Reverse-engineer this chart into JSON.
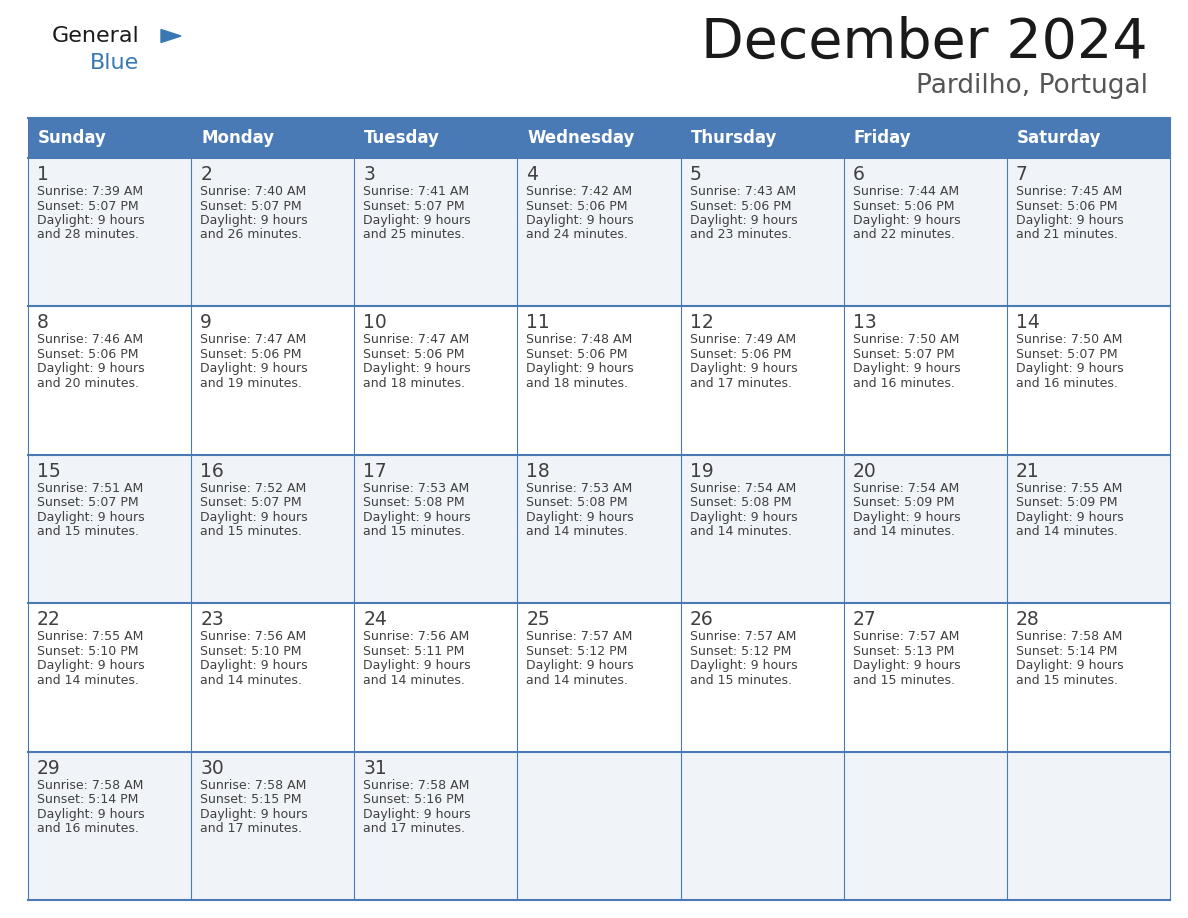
{
  "title": "December 2024",
  "subtitle": "Pardilho, Portugal",
  "days_of_week": [
    "Sunday",
    "Monday",
    "Tuesday",
    "Wednesday",
    "Thursday",
    "Friday",
    "Saturday"
  ],
  "header_bg_color": "#4a7ab5",
  "header_text_color": "#ffffff",
  "row_bg_even": "#f0f4f8",
  "row_bg_odd": "#ffffff",
  "cell_text_color": "#404040",
  "title_color": "#1a1a1a",
  "subtitle_color": "#555555",
  "grid_color": "#4a7ab5",
  "logo_general_color": "#1a1a1a",
  "logo_blue_color": "#3878b4",
  "weeks": [
    [
      {
        "day": 1,
        "sunrise": "7:39 AM",
        "sunset": "5:07 PM",
        "daylight_hours": 9,
        "daylight_minutes": "28 minutes."
      },
      {
        "day": 2,
        "sunrise": "7:40 AM",
        "sunset": "5:07 PM",
        "daylight_hours": 9,
        "daylight_minutes": "26 minutes."
      },
      {
        "day": 3,
        "sunrise": "7:41 AM",
        "sunset": "5:07 PM",
        "daylight_hours": 9,
        "daylight_minutes": "25 minutes."
      },
      {
        "day": 4,
        "sunrise": "7:42 AM",
        "sunset": "5:06 PM",
        "daylight_hours": 9,
        "daylight_minutes": "24 minutes."
      },
      {
        "day": 5,
        "sunrise": "7:43 AM",
        "sunset": "5:06 PM",
        "daylight_hours": 9,
        "daylight_minutes": "23 minutes."
      },
      {
        "day": 6,
        "sunrise": "7:44 AM",
        "sunset": "5:06 PM",
        "daylight_hours": 9,
        "daylight_minutes": "22 minutes."
      },
      {
        "day": 7,
        "sunrise": "7:45 AM",
        "sunset": "5:06 PM",
        "daylight_hours": 9,
        "daylight_minutes": "21 minutes."
      }
    ],
    [
      {
        "day": 8,
        "sunrise": "7:46 AM",
        "sunset": "5:06 PM",
        "daylight_hours": 9,
        "daylight_minutes": "20 minutes."
      },
      {
        "day": 9,
        "sunrise": "7:47 AM",
        "sunset": "5:06 PM",
        "daylight_hours": 9,
        "daylight_minutes": "19 minutes."
      },
      {
        "day": 10,
        "sunrise": "7:47 AM",
        "sunset": "5:06 PM",
        "daylight_hours": 9,
        "daylight_minutes": "18 minutes."
      },
      {
        "day": 11,
        "sunrise": "7:48 AM",
        "sunset": "5:06 PM",
        "daylight_hours": 9,
        "daylight_minutes": "18 minutes."
      },
      {
        "day": 12,
        "sunrise": "7:49 AM",
        "sunset": "5:06 PM",
        "daylight_hours": 9,
        "daylight_minutes": "17 minutes."
      },
      {
        "day": 13,
        "sunrise": "7:50 AM",
        "sunset": "5:07 PM",
        "daylight_hours": 9,
        "daylight_minutes": "16 minutes."
      },
      {
        "day": 14,
        "sunrise": "7:50 AM",
        "sunset": "5:07 PM",
        "daylight_hours": 9,
        "daylight_minutes": "16 minutes."
      }
    ],
    [
      {
        "day": 15,
        "sunrise": "7:51 AM",
        "sunset": "5:07 PM",
        "daylight_hours": 9,
        "daylight_minutes": "15 minutes."
      },
      {
        "day": 16,
        "sunrise": "7:52 AM",
        "sunset": "5:07 PM",
        "daylight_hours": 9,
        "daylight_minutes": "15 minutes."
      },
      {
        "day": 17,
        "sunrise": "7:53 AM",
        "sunset": "5:08 PM",
        "daylight_hours": 9,
        "daylight_minutes": "15 minutes."
      },
      {
        "day": 18,
        "sunrise": "7:53 AM",
        "sunset": "5:08 PM",
        "daylight_hours": 9,
        "daylight_minutes": "14 minutes."
      },
      {
        "day": 19,
        "sunrise": "7:54 AM",
        "sunset": "5:08 PM",
        "daylight_hours": 9,
        "daylight_minutes": "14 minutes."
      },
      {
        "day": 20,
        "sunrise": "7:54 AM",
        "sunset": "5:09 PM",
        "daylight_hours": 9,
        "daylight_minutes": "14 minutes."
      },
      {
        "day": 21,
        "sunrise": "7:55 AM",
        "sunset": "5:09 PM",
        "daylight_hours": 9,
        "daylight_minutes": "14 minutes."
      }
    ],
    [
      {
        "day": 22,
        "sunrise": "7:55 AM",
        "sunset": "5:10 PM",
        "daylight_hours": 9,
        "daylight_minutes": "14 minutes."
      },
      {
        "day": 23,
        "sunrise": "7:56 AM",
        "sunset": "5:10 PM",
        "daylight_hours": 9,
        "daylight_minutes": "14 minutes."
      },
      {
        "day": 24,
        "sunrise": "7:56 AM",
        "sunset": "5:11 PM",
        "daylight_hours": 9,
        "daylight_minutes": "14 minutes."
      },
      {
        "day": 25,
        "sunrise": "7:57 AM",
        "sunset": "5:12 PM",
        "daylight_hours": 9,
        "daylight_minutes": "14 minutes."
      },
      {
        "day": 26,
        "sunrise": "7:57 AM",
        "sunset": "5:12 PM",
        "daylight_hours": 9,
        "daylight_minutes": "15 minutes."
      },
      {
        "day": 27,
        "sunrise": "7:57 AM",
        "sunset": "5:13 PM",
        "daylight_hours": 9,
        "daylight_minutes": "15 minutes."
      },
      {
        "day": 28,
        "sunrise": "7:58 AM",
        "sunset": "5:14 PM",
        "daylight_hours": 9,
        "daylight_minutes": "15 minutes."
      }
    ],
    [
      {
        "day": 29,
        "sunrise": "7:58 AM",
        "sunset": "5:14 PM",
        "daylight_hours": 9,
        "daylight_minutes": "16 minutes."
      },
      {
        "day": 30,
        "sunrise": "7:58 AM",
        "sunset": "5:15 PM",
        "daylight_hours": 9,
        "daylight_minutes": "17 minutes."
      },
      {
        "day": 31,
        "sunrise": "7:58 AM",
        "sunset": "5:16 PM",
        "daylight_hours": 9,
        "daylight_minutes": "17 minutes."
      },
      null,
      null,
      null,
      null
    ]
  ]
}
